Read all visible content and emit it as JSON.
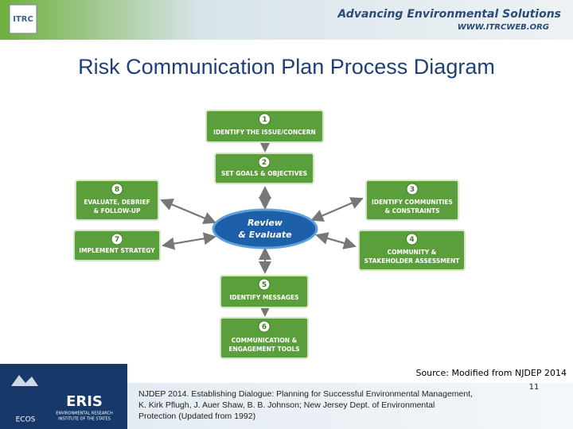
{
  "header": {
    "logo": "ITRC",
    "tagline": "Advancing Environmental Solutions",
    "url": "WWW.ITRCWEB.ORG"
  },
  "title": "Risk Communication Plan Process Diagram",
  "center": {
    "lines": [
      "Review",
      "& Evaluate"
    ]
  },
  "nodes": [
    {
      "number": "1",
      "lines": [
        "IDENTIFY THE ISSUE/CONCERN"
      ]
    },
    {
      "number": "2",
      "lines": [
        "SET GOALS & OBJECTIVES"
      ]
    },
    {
      "number": "3",
      "lines": [
        "IDENTIFY COMMUNITIES",
        "& CONSTRAINTS"
      ]
    },
    {
      "number": "4",
      "lines": [
        "COMMUNITY &",
        "STAKEHOLDER ASSESSMENT"
      ]
    },
    {
      "number": "5",
      "lines": [
        "IDENTIFY MESSAGES"
      ]
    },
    {
      "number": "6",
      "lines": [
        "COMMUNICATION &",
        "ENGAGEMENT TOOLS"
      ]
    },
    {
      "number": "7",
      "lines": [
        "IMPLEMENT STRATEGY"
      ]
    },
    {
      "number": "8",
      "lines": [
        "EVALUATE, DEBRIEF",
        "& FOLLOW-UP"
      ]
    }
  ],
  "source": "Source: Modified from NJDEP 2014",
  "footer": {
    "logos": [
      "ECOS",
      "ERIS",
      "ENVIRONMENTAL RESEARCH",
      "INSTITUTE OF THE STATES"
    ],
    "citation": [
      "NJDEP 2014. Establishing Dialogue: Planning for Successful Environmental Management,",
      "K. Kirk Pflugh, J. Auer Shaw, B. B. Johnson; New Jersey Dept. of Environmental",
      "Protection (Updated from 1992)"
    ],
    "page": "11"
  }
}
